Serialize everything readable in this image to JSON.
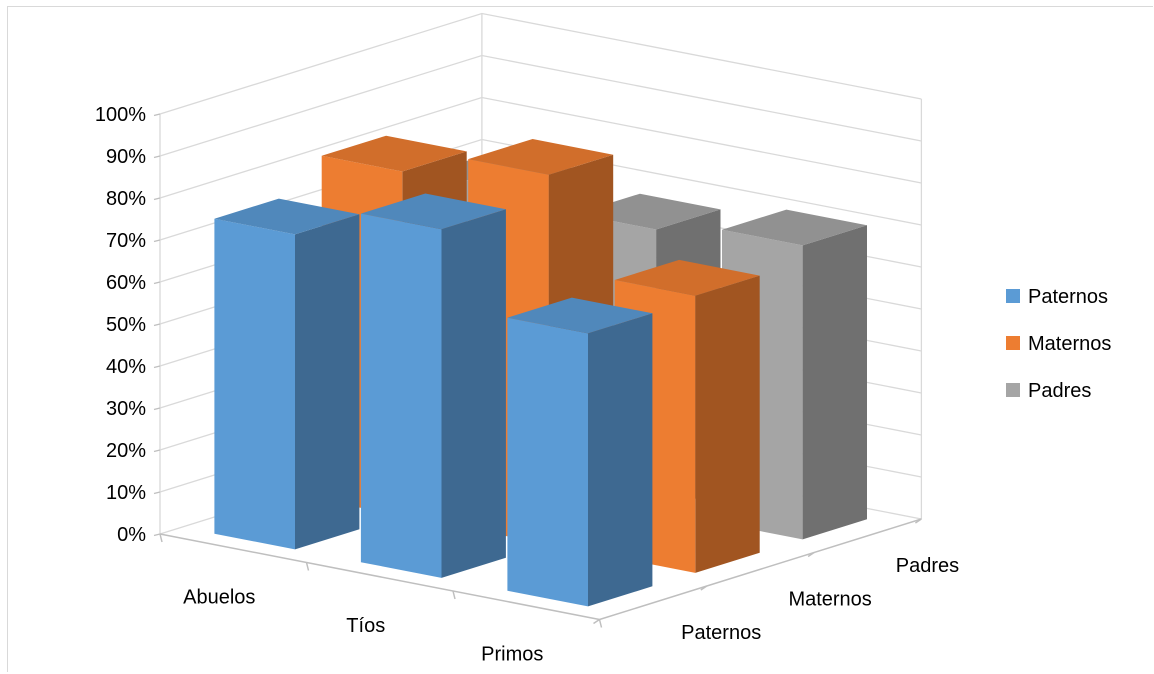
{
  "chart_data": {
    "type": "bar",
    "subtype": "3d-column",
    "title": "",
    "xlabel": "",
    "ylabel": "",
    "categories": [
      "Abuelos",
      "Tíos",
      "Primos"
    ],
    "series": [
      {
        "name": "Paternos",
        "values": [
          0.75,
          0.83,
          0.65
        ],
        "color": "#5B9BD5"
      },
      {
        "name": "Maternos",
        "values": [
          0.82,
          0.88,
          0.66
        ],
        "color": "#ED7D31"
      },
      {
        "name": "Padres",
        "values": [
          0.7,
          0.67,
          0.7
        ],
        "color": "#A5A5A5"
      }
    ],
    "y_ticks": [
      "0%",
      "10%",
      "20%",
      "30%",
      "40%",
      "50%",
      "60%",
      "70%",
      "80%",
      "90%",
      "100%"
    ],
    "ylim": [
      0,
      1
    ],
    "depth_labels": [
      "Paternos",
      "Maternos",
      "Padres"
    ],
    "grid": true,
    "legend": {
      "position": "right",
      "entries": [
        "Paternos",
        "Maternos",
        "Padres"
      ]
    }
  }
}
